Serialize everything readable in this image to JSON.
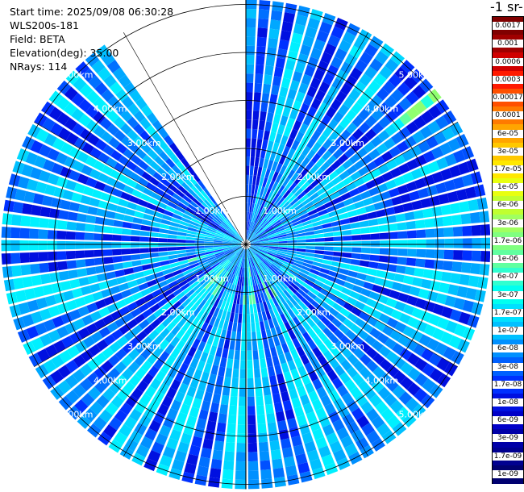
{
  "info": {
    "start_time": "Start time: 2025/09/08 06:30:28",
    "instrument": "WLS200s-181",
    "field": "Field: BETA",
    "elevation": "Elevation(deg): 35.00",
    "nrays": "NRays: 114"
  },
  "colorbar": {
    "title": "-1 sr-",
    "labels": [
      "0.0017",
      "0.001",
      "0.0006",
      "0.0003",
      "0.00017",
      "0.0001",
      "6e-05",
      "3e-05",
      "1.7e-05",
      "1e-05",
      "6e-06",
      "3e-06",
      "1.7e-06",
      "1e-06",
      "6e-07",
      "3e-07",
      "1.7e-07",
      "1e-07",
      "6e-08",
      "3e-08",
      "1.7e-08",
      "1e-08",
      "6e-09",
      "3e-09",
      "1.7e-09",
      "1e-09"
    ],
    "colors": [
      "#800000",
      "#a00000",
      "#d00000",
      "#ff1a00",
      "#ff5000",
      "#ff7a00",
      "#ffa500",
      "#ffc800",
      "#ffe800",
      "#e8ff10",
      "#c0ff30",
      "#a0ff60",
      "#80ff80",
      "#60ffa0",
      "#30ffd0",
      "#00fff0",
      "#00e0ff",
      "#00c0ff",
      "#0090ff",
      "#0060ff",
      "#0030ff",
      "#0010e0",
      "#0000c8",
      "#0000a8",
      "#000090",
      "#000070"
    ]
  },
  "chart_data": {
    "type": "ppi-polar",
    "field": "BETA",
    "elevation_deg": 35.0,
    "n_rays": 114,
    "range_rings_km": [
      1,
      2,
      3,
      4,
      5
    ],
    "ring_labels": [
      "1.00km",
      "2.00km",
      "3.00km",
      "4.00km",
      "5.00km"
    ],
    "max_range_km": 5.1,
    "gap_azimuth_deg": [
      -37,
      0
    ],
    "colorbar_scale": "log",
    "colorbar_range": [
      1e-09,
      0.0017
    ]
  }
}
